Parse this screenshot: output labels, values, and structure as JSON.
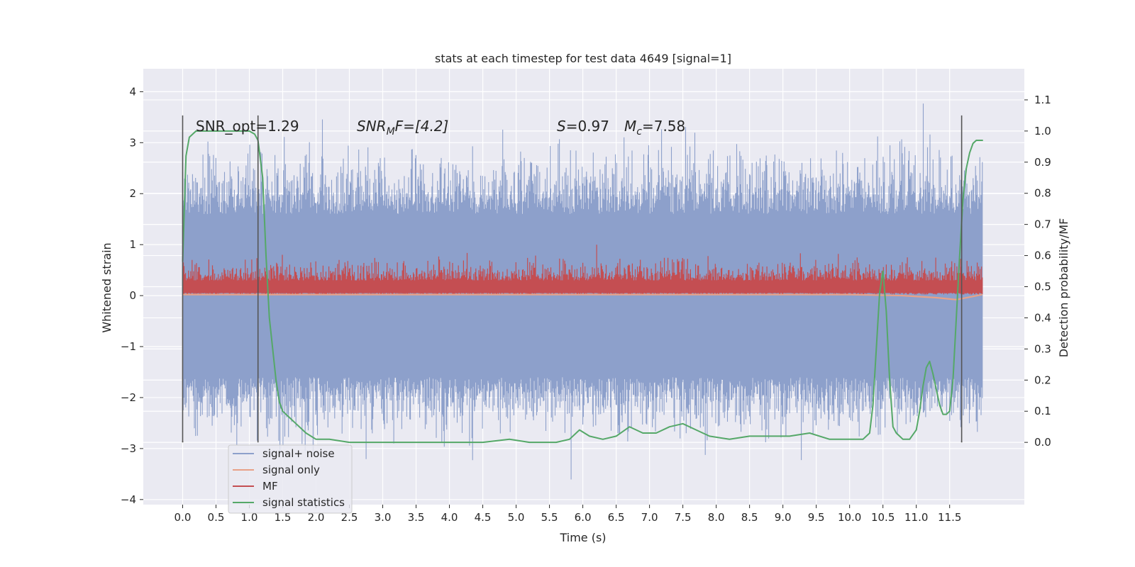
{
  "chart_data": {
    "type": "line",
    "title": "stats at each timestep for test data 4649 [signal=1]",
    "xlabel": "Time (s)",
    "ylabel": "Whitened strain",
    "ylabel_right": "Detection probability/MF",
    "xlim": [
      -0.59,
      12.62
    ],
    "ylim": [
      -4.1,
      4.45
    ],
    "ylim_right": [
      -0.2,
      1.2
    ],
    "x_ticks": [
      0.0,
      0.5,
      1.0,
      1.5,
      2.0,
      2.5,
      3.0,
      3.5,
      4.0,
      4.5,
      5.0,
      5.5,
      6.0,
      6.5,
      7.0,
      7.5,
      8.0,
      8.5,
      9.0,
      9.5,
      10.0,
      10.5,
      11.0,
      11.5
    ],
    "x_tick_labels": [
      "0.0",
      "0.5",
      "1.0",
      "1.5",
      "2.0",
      "2.5",
      "3.0",
      "3.5",
      "4.0",
      "4.5",
      "5.0",
      "5.5",
      "6.0",
      "6.5",
      "7.0",
      "7.5",
      "8.0",
      "8.5",
      "9.0",
      "9.5",
      "10.0",
      "10.5",
      "11.0",
      "11.5"
    ],
    "y_ticks": [
      -4,
      -3,
      -2,
      -1,
      0,
      1,
      2,
      3,
      4
    ],
    "y_tick_labels": [
      "−4",
      "−3",
      "−2",
      "−1",
      "0",
      "1",
      "2",
      "3",
      "4"
    ],
    "y_ticks_right": [
      0.0,
      0.1,
      0.2,
      0.3,
      0.4,
      0.5,
      0.6,
      0.7,
      0.8,
      0.9,
      1.0,
      1.1
    ],
    "y_tick_labels_right": [
      "0.0",
      "0.1",
      "0.2",
      "0.3",
      "0.4",
      "0.5",
      "0.6",
      "0.7",
      "0.8",
      "0.9",
      "1.0",
      "1.1"
    ],
    "grid": true,
    "legend_position": "lower-left",
    "annotations": {
      "snr_opt": "SNR_opt=1.29",
      "snr_mf_sym": "SNR",
      "snr_mf_sub": "M",
      "snr_mf_rest": "F=[4.2]",
      "s_sym": "S",
      "s_val": "=0.97",
      "mc_sym": "M",
      "mc_sub": "c",
      "mc_val": "=7.58"
    },
    "vertical_markers": [
      0.0,
      1.13,
      11.68
    ],
    "series": [
      {
        "name": "signal+ noise",
        "color": "#8da0cb",
        "axis": "left",
        "kind": "noise_band",
        "x_range": [
          0.0,
          11.99
        ],
        "typical_range": [
          -1.6,
          1.6
        ],
        "peak_max": 4.1,
        "peak_min": -3.7
      },
      {
        "name": "signal only",
        "color": "#e8a187",
        "axis": "left",
        "kind": "line",
        "x": [
          0.0,
          2.0,
          4.0,
          6.0,
          8.0,
          10.0,
          10.8,
          11.3,
          11.6,
          11.8,
          11.99
        ],
        "values": [
          0.02,
          0.02,
          0.02,
          0.02,
          0.02,
          0.02,
          0.0,
          -0.04,
          -0.08,
          -0.03,
          0.02
        ]
      },
      {
        "name": "MF",
        "color": "#c44e52",
        "axis": "left",
        "kind": "filled_band",
        "x_range": [
          0.0,
          11.99
        ],
        "range": [
          0.0,
          0.75
        ],
        "peak_max": 1.0
      },
      {
        "name": "signal statistics",
        "color": "#55a868",
        "axis": "right",
        "kind": "line",
        "x": [
          0.0,
          0.05,
          0.1,
          0.15,
          0.2,
          0.3,
          0.5,
          0.7,
          0.9,
          1.0,
          1.08,
          1.13,
          1.2,
          1.25,
          1.3,
          1.35,
          1.4,
          1.45,
          1.5,
          1.6,
          1.7,
          1.85,
          2.0,
          2.2,
          2.5,
          2.8,
          3.1,
          3.5,
          4.0,
          4.5,
          4.9,
          5.2,
          5.6,
          5.8,
          5.95,
          6.1,
          6.3,
          6.5,
          6.7,
          6.9,
          7.1,
          7.3,
          7.5,
          7.7,
          7.9,
          8.2,
          8.5,
          8.8,
          9.1,
          9.4,
          9.7,
          10.0,
          10.2,
          10.3,
          10.35,
          10.4,
          10.45,
          10.5,
          10.55,
          10.6,
          10.65,
          10.7,
          10.8,
          10.9,
          11.0,
          11.05,
          11.1,
          11.15,
          11.2,
          11.25,
          11.3,
          11.35,
          11.4,
          11.45,
          11.5,
          11.55,
          11.6,
          11.65,
          11.7,
          11.75,
          11.8,
          11.85,
          11.9,
          11.95,
          12.0
        ],
        "values": [
          0.58,
          0.92,
          0.98,
          0.99,
          1.0,
          1.0,
          1.0,
          1.0,
          1.0,
          1.0,
          0.99,
          0.97,
          0.85,
          0.6,
          0.4,
          0.3,
          0.2,
          0.13,
          0.1,
          0.08,
          0.06,
          0.03,
          0.01,
          0.01,
          0.0,
          0.0,
          0.0,
          0.0,
          0.0,
          0.0,
          0.01,
          0.0,
          0.0,
          0.01,
          0.04,
          0.02,
          0.01,
          0.02,
          0.05,
          0.03,
          0.03,
          0.05,
          0.06,
          0.04,
          0.02,
          0.01,
          0.02,
          0.02,
          0.02,
          0.03,
          0.01,
          0.01,
          0.01,
          0.03,
          0.12,
          0.3,
          0.48,
          0.55,
          0.42,
          0.2,
          0.05,
          0.03,
          0.01,
          0.01,
          0.04,
          0.1,
          0.18,
          0.24,
          0.26,
          0.22,
          0.17,
          0.12,
          0.09,
          0.09,
          0.1,
          0.2,
          0.4,
          0.6,
          0.78,
          0.88,
          0.93,
          0.96,
          0.97,
          0.97,
          0.97
        ]
      }
    ]
  }
}
